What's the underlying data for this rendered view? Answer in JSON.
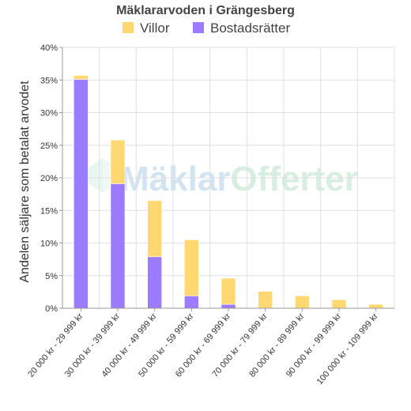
{
  "chart_data": {
    "type": "bar",
    "stacked": true,
    "title": "Mäklararvoden i Grängesberg",
    "ylabel": "Andelen säljare som betalat arvodet",
    "xlabel": "",
    "ylim": [
      0,
      40
    ],
    "yticks": [
      "0%",
      "5%",
      "10%",
      "15%",
      "20%",
      "25%",
      "30%",
      "35%",
      "40%"
    ],
    "ytick_values": [
      0,
      5,
      10,
      15,
      20,
      25,
      30,
      35,
      40
    ],
    "grid": true,
    "legend_position": "top",
    "categories": [
      "20 000 kr - 29 999 kr",
      "30 000 kr - 39 999 kr",
      "40 000 kr - 49 999 kr",
      "50 000 kr - 59 999 kr",
      "60 000 kr - 69 999 kr",
      "70 000 kr - 79 999 kr",
      "80 000 kr - 89 999 kr",
      "90 000 kr - 99 999 kr",
      "100 000 kr - 109 999 kr"
    ],
    "series": [
      {
        "name": "Bostadsrätter",
        "color": "#9b7bff",
        "values": [
          35.1,
          19.1,
          7.9,
          1.9,
          0.6,
          0,
          0,
          0,
          0
        ]
      },
      {
        "name": "Villor",
        "color": "#ffd872",
        "values": [
          0.6,
          6.7,
          8.6,
          8.6,
          4.0,
          2.6,
          1.9,
          1.3,
          0.6
        ]
      }
    ],
    "legend_order": [
      "Villor",
      "Bostadsrätter"
    ],
    "watermark": "MäklarOfferter"
  }
}
